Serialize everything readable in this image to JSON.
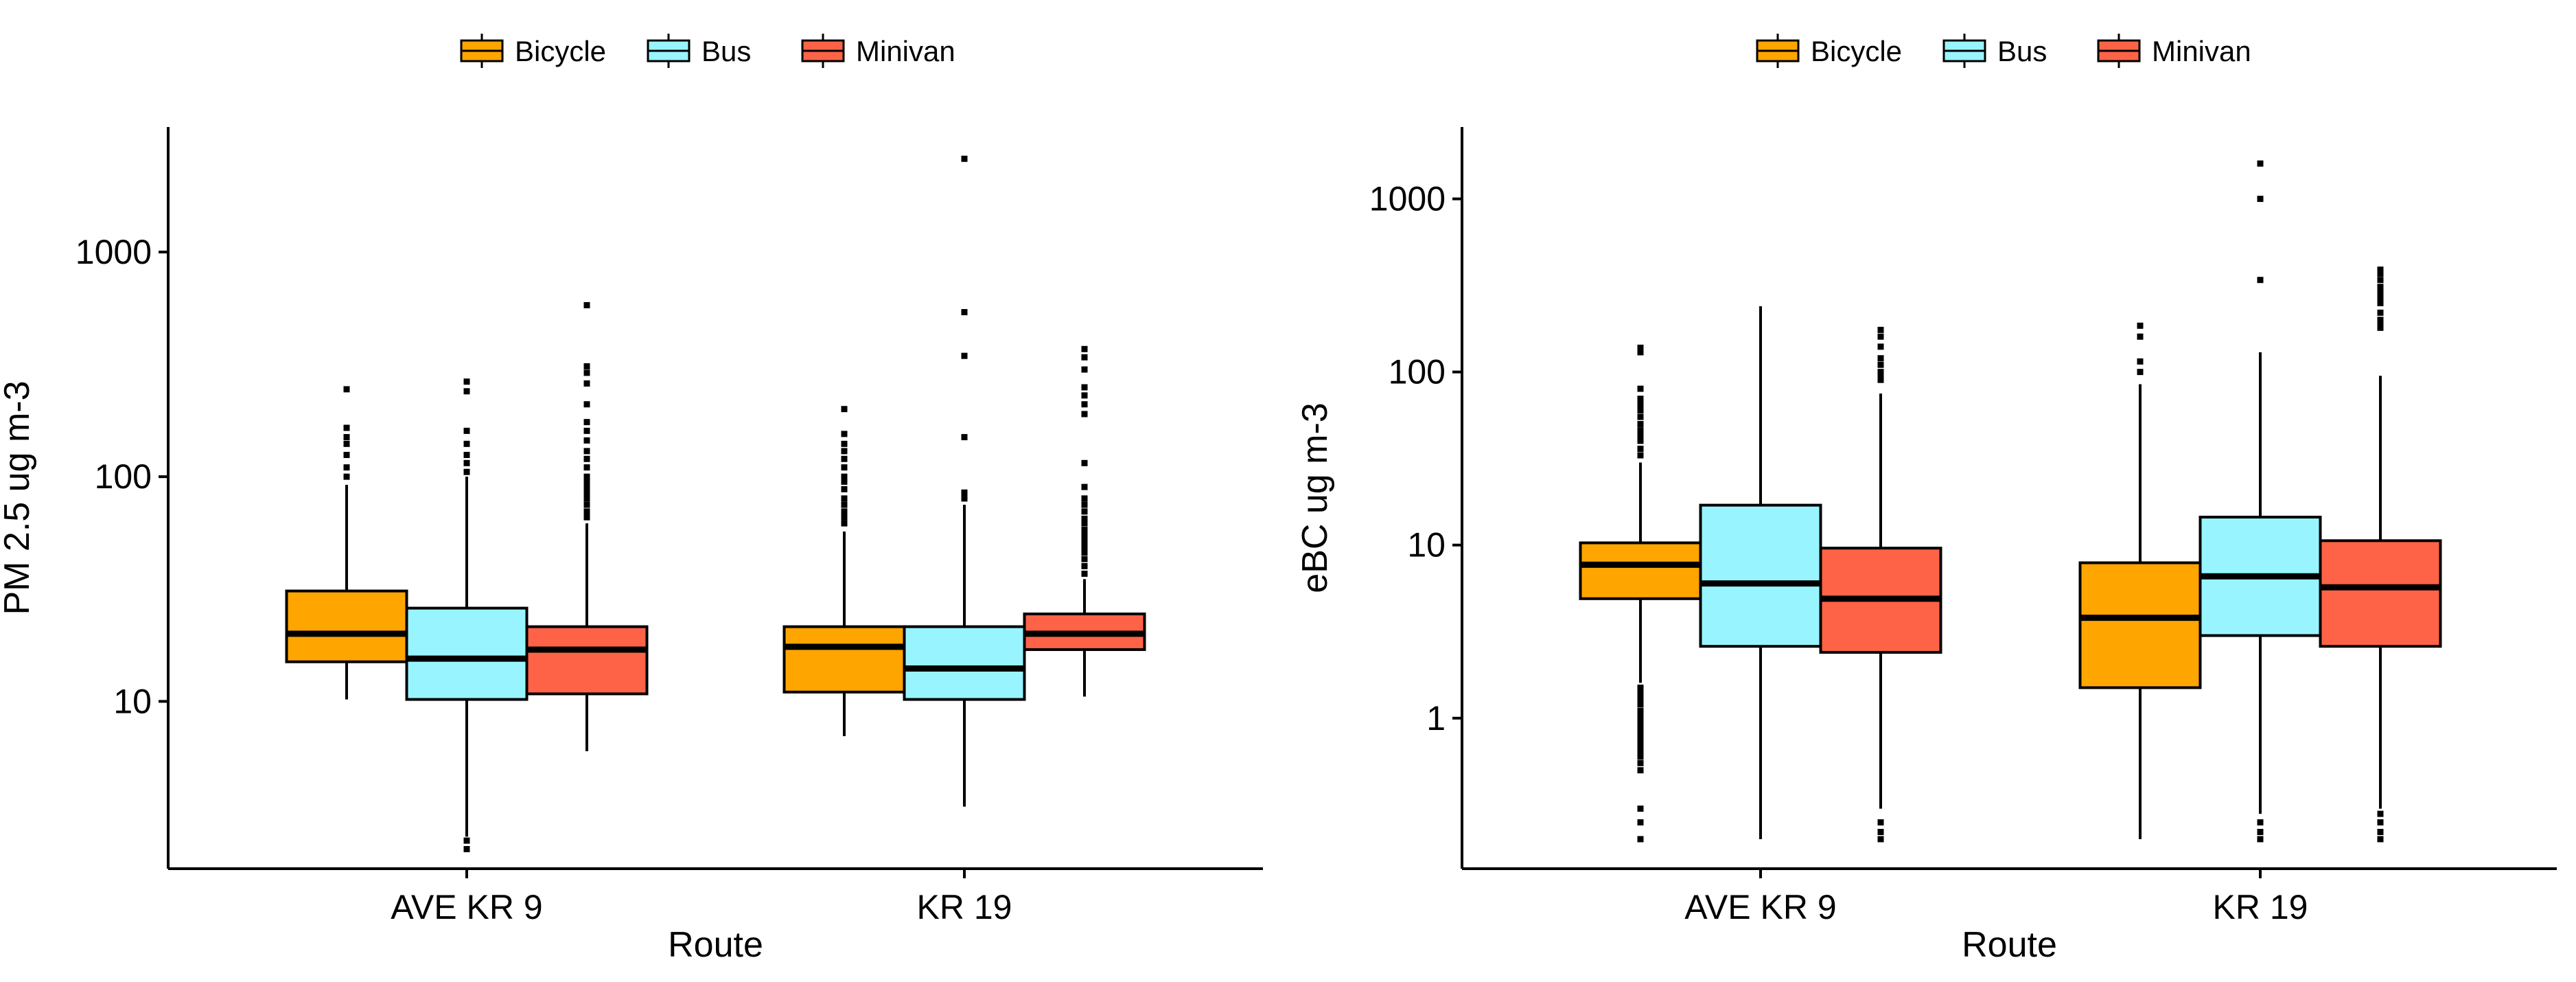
{
  "chart_data": [
    {
      "type": "boxplot",
      "ylabel": "PM 2.5 ug m-3",
      "xlabel": "Route",
      "yscale": "log10",
      "ylim": [
        1.8,
        3600
      ],
      "yticks": [
        10,
        100,
        1000
      ],
      "ytick_labels": [
        "10",
        "100",
        "1000"
      ],
      "legend": [
        "Bicycle",
        "Bus",
        "Minivan"
      ],
      "legend_position": "top-center",
      "categories": [
        "AVE KR 9",
        "KR 19"
      ],
      "series": [
        {
          "name": "Bicycle",
          "color": "#FFA500",
          "boxes": [
            {
              "whisker_low": 10.2,
              "q1": 15,
              "median": 20,
              "q3": 31,
              "whisker_high": 92,
              "outliers": [
                100,
                110,
                125,
                140,
                150,
                165,
                245
              ]
            },
            {
              "whisker_low": 7,
              "q1": 11,
              "median": 17.5,
              "q3": 21.5,
              "whisker_high": 57,
              "outliers": [
                62,
                66,
                70,
                75,
                80,
                88,
                95,
                100,
                110,
                120,
                130,
                140,
                155,
                200
              ]
            }
          ]
        },
        {
          "name": "Bus",
          "color": "#98F5FF",
          "boxes": [
            {
              "whisker_low": 2.5,
              "q1": 10.2,
              "median": 15.5,
              "q3": 26,
              "whisker_high": 100,
              "outliers": [
                2.2,
                2.4,
                105,
                115,
                125,
                140,
                160,
                240,
                265
              ]
            },
            {
              "whisker_low": 3.4,
              "q1": 10.2,
              "median": 14,
              "q3": 21.5,
              "whisker_high": 75,
              "outliers": [
                80,
                85,
                150,
                345,
                540,
                2600
              ]
            }
          ]
        },
        {
          "name": "Minivan",
          "color": "#FF6347",
          "boxes": [
            {
              "whisker_low": 6,
              "q1": 10.8,
              "median": 17,
              "q3": 21.5,
              "whisker_high": 62,
              "outliers": [
                66,
                70,
                75,
                80,
                85,
                90,
                95,
                100,
                110,
                120,
                130,
                145,
                160,
                175,
                210,
                260,
                290,
                310,
                580
              ]
            },
            {
              "whisker_low": 10.5,
              "q1": 17,
              "median": 20,
              "q3": 24.5,
              "whisker_high": 35,
              "outliers": [
                37,
                40,
                43,
                46,
                49,
                52,
                55,
                58,
                62,
                65,
                70,
                75,
                80,
                90,
                115,
                190,
                210,
                230,
                250,
                300,
                340,
                370
              ]
            }
          ]
        }
      ]
    },
    {
      "type": "boxplot",
      "ylabel": "eBC ug m-3",
      "xlabel": "Route",
      "yscale": "log10",
      "ylim": [
        0.135,
        2600
      ],
      "yticks": [
        1,
        10,
        100,
        1000
      ],
      "ytick_labels": [
        "1",
        "10",
        "100",
        "1000"
      ],
      "legend": [
        "Bicycle",
        "Bus",
        "Minivan"
      ],
      "legend_position": "top-center",
      "categories": [
        "AVE KR 9",
        "KR 19"
      ],
      "series": [
        {
          "name": "Bicycle",
          "color": "#FFA500",
          "boxes": [
            {
              "whisker_low": 1.6,
              "q1": 4.9,
              "median": 7.7,
              "q3": 10.3,
              "whisker_high": 30,
              "outliers": [
                0.2,
                0.25,
                0.3,
                0.5,
                0.55,
                0.6,
                0.65,
                0.7,
                0.75,
                0.8,
                0.85,
                0.9,
                0.95,
                1.0,
                1.05,
                1.1,
                1.2,
                1.3,
                1.4,
                1.5,
                33,
                36,
                40,
                43,
                46,
                50,
                55,
                60,
                65,
                70,
                80,
                130,
                138
              ]
            },
            {
              "whisker_low": 0.2,
              "q1": 1.5,
              "median": 3.8,
              "q3": 7.9,
              "whisker_high": 85,
              "outliers": [
                100,
                115,
                160,
                185
              ]
            }
          ]
        },
        {
          "name": "Bus",
          "color": "#98F5FF",
          "boxes": [
            {
              "whisker_low": 0.2,
              "q1": 2.6,
              "median": 6,
              "q3": 17,
              "whisker_high": 240,
              "outliers": []
            },
            {
              "whisker_low": 0.28,
              "q1": 3,
              "median": 6.6,
              "q3": 14.5,
              "whisker_high": 130,
              "outliers": [
                0.2,
                0.22,
                0.25,
                340,
                1000,
                1600
              ]
            }
          ]
        },
        {
          "name": "Minivan",
          "color": "#FF6347",
          "boxes": [
            {
              "whisker_low": 0.3,
              "q1": 2.4,
              "median": 4.9,
              "q3": 9.6,
              "whisker_high": 75,
              "outliers": [
                0.2,
                0.22,
                0.25,
                90,
                95,
                100,
                110,
                120,
                140,
                160,
                175
              ]
            },
            {
              "whisker_low": 0.3,
              "q1": 2.6,
              "median": 5.7,
              "q3": 10.6,
              "whisker_high": 95,
              "outliers": [
                0.2,
                0.22,
                0.25,
                0.28,
                180,
                190,
                200,
                220,
                250,
                270,
                290,
                310,
                340,
                370,
                390
              ]
            }
          ]
        }
      ]
    }
  ]
}
